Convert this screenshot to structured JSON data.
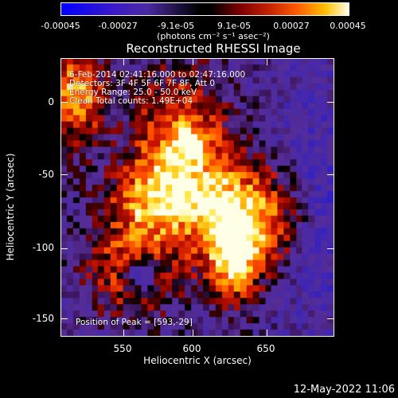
{
  "colorbar": {
    "ticks": [
      "-0.00045",
      "-0.00027",
      "-9.1e-05",
      "9.1e-05",
      "0.00027",
      "0.00045"
    ],
    "unit": "(photons cm⁻² s⁻¹ asec⁻²)",
    "colors": [
      "#0000ff",
      "#4a2aa0",
      "#000000",
      "#c42000",
      "#ffc000",
      "#ffffe8"
    ]
  },
  "plot": {
    "title": "Reconstructed RHESSI Image",
    "xlabel": "Heliocentric X (arcsec)",
    "ylabel": "Heliocentric Y (arcsec)",
    "xticks": [
      "550",
      "600",
      "650"
    ],
    "yticks": [
      "0",
      "-50",
      "-100",
      "-150"
    ],
    "info_lines": [
      "6-Feb-2014 02:41:16.000 to 02:47:16.000",
      "Detectors: 3F 4F 5F 6F 7F 8F, Att 0",
      "Energy Range: 25.0 - 50.0 keV",
      "Clean      Total counts: 1.49E+04"
    ],
    "peak_label": "Position of Peak = [593,-29]"
  },
  "timestamp": "12-May-2022 11:06"
}
